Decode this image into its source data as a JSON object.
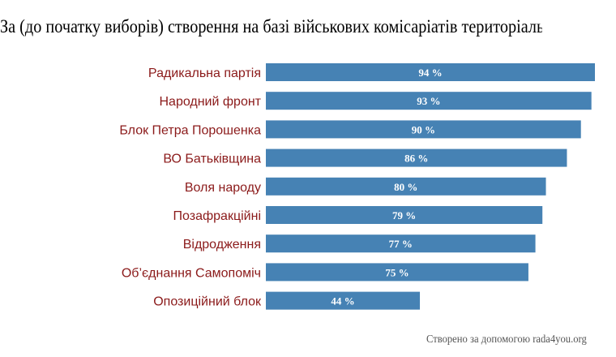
{
  "title": "За (до початку виборів) створення на базі військових комісаріатів територіальних",
  "footer": "Створено за допомогою rada4you.org",
  "colors": {
    "bar": "#4682b4",
    "category_label": "#8b1a1a",
    "value_label": "#ffffff"
  },
  "chart_data": {
    "type": "bar",
    "orientation": "horizontal",
    "categories": [
      "Радикальна партія",
      "Народний фронт",
      "Блок Петра Порошенка",
      "ВО Батьківщина",
      "Воля народу",
      "Позафракційні",
      "Відродження",
      "Об’єднання Самопоміч",
      "Опозиційний блок"
    ],
    "values": [
      94,
      93,
      90,
      86,
      80,
      79,
      77,
      75,
      44
    ],
    "value_labels": [
      "94 %",
      "93 %",
      "90 %",
      "86 %",
      "80 %",
      "79 %",
      "77 %",
      "75 %",
      "44 %"
    ],
    "xlim": [
      0,
      100
    ],
    "grid": false,
    "legend": "none"
  }
}
